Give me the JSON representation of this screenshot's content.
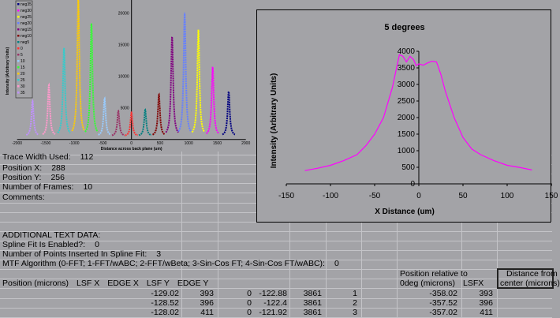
{
  "sheet": {
    "trace_width_label": "Trace Width Used:",
    "trace_width_value": "112",
    "pos_x_label": "Position X:",
    "pos_x_value": "288",
    "pos_y_label": "Position Y:",
    "pos_y_value": "256",
    "frames_label": "Number of Frames:",
    "frames_value": "10",
    "comments_label": "Comments:",
    "additional_label": "ADDITIONAL TEXT DATA:",
    "spline_label": "Spline Fit Is Enabled?:",
    "spline_value": "0",
    "points_label": "Number of Points Inserted In Spline Fit:",
    "points_value": "3",
    "mtf_label": "MTF Algorithm (0-FFT; 1-FFT/wABC; 2-FFT/wBeta; 3-Sin-Cos FT; 4-Sin-Cos FT/wABC):",
    "mtf_value": "0",
    "headers": {
      "position": "Position (microns)",
      "lsfx": "LSF X",
      "edgex": "EDGE X",
      "lsfy": "LSF Y",
      "edgey": "EDGE Y",
      "rel1": "Position relative to",
      "rel2": "0deg (microns)",
      "lsfx2": "LSFX",
      "dist1": "Distance from",
      "dist2": "center (microns)"
    },
    "rows": [
      [
        "-129.02",
        "393",
        "0",
        "-122.88",
        "3861",
        "1",
        "-358.02",
        "393"
      ],
      [
        "-128.52",
        "396",
        "0",
        "-122.4",
        "3861",
        "2",
        "-357.52",
        "396"
      ],
      [
        "-128.02",
        "411",
        "0",
        "-121.92",
        "3861",
        "3",
        "-357.02",
        "411"
      ]
    ]
  },
  "chart_data": [
    {
      "type": "line",
      "title": "",
      "xlabel": "Distance across back plane (um)",
      "ylabel": "Intensity (Arbitrary Units)",
      "xlim": [
        -2000,
        2000
      ],
      "ylim": [
        0,
        22000
      ],
      "xticks": [
        "-2000",
        "-1500",
        "-1000",
        "-500",
        "0",
        "500",
        "1000",
        "1500",
        "2000"
      ],
      "yticks": [
        "5000",
        "10000",
        "15000",
        "20000"
      ],
      "legend_position": "top-left",
      "series": [
        {
          "name": "neg35",
          "center": 1700,
          "peak": 7100,
          "color": "#000080"
        },
        {
          "name": "neg30",
          "center": 1420,
          "peak": 11000,
          "color": "#ff00ff"
        },
        {
          "name": "neg25",
          "center": 1170,
          "peak": 16900,
          "color": "#ffff00"
        },
        {
          "name": "neg20",
          "center": 930,
          "peak": 19600,
          "color": "#6680ff"
        },
        {
          "name": "neg15",
          "center": 710,
          "peak": 15800,
          "color": "#800080"
        },
        {
          "name": "neg10",
          "center": 480,
          "peak": 6600,
          "color": "#800000"
        },
        {
          "name": "neg5",
          "center": 240,
          "peak": 4200,
          "color": "#008080"
        },
        {
          "name": "0",
          "center": 0,
          "peak": 3800,
          "color": "#ff3333"
        },
        {
          "name": "5",
          "center": -230,
          "peak": 4000,
          "color": "#993366"
        },
        {
          "name": "10",
          "center": -470,
          "peak": 6000,
          "color": "#99ccff"
        },
        {
          "name": "15",
          "center": -700,
          "peak": 17900,
          "color": "#33ff33"
        },
        {
          "name": "20",
          "center": -930,
          "peak": 22000,
          "color": "#ffcc00"
        },
        {
          "name": "25",
          "center": -1180,
          "peak": 14000,
          "color": "#33cccc"
        },
        {
          "name": "30",
          "center": -1445,
          "peak": 8100,
          "color": "#ff99cc"
        },
        {
          "name": "35",
          "center": -1730,
          "peak": 5600,
          "color": "#c090ff"
        }
      ]
    },
    {
      "type": "line",
      "title": "5 degrees",
      "xlabel": "X Distance (um)",
      "ylabel": "Intensity (Arbitrary Units)",
      "xlim": [
        -150,
        150
      ],
      "ylim": [
        0,
        4000
      ],
      "xticks": [
        "-150",
        "-100",
        "-50",
        "0",
        "50",
        "100",
        "150"
      ],
      "yticks": [
        "0",
        "500",
        "1000",
        "1500",
        "2000",
        "2500",
        "3000",
        "3500",
        "4000"
      ],
      "color": "#ff00ff",
      "x": [
        -129,
        -115,
        -100,
        -85,
        -70,
        -60,
        -50,
        -40,
        -30,
        -22,
        -18,
        -14,
        -10,
        -6,
        -3,
        0,
        5,
        10,
        15,
        20,
        25,
        30,
        40,
        50,
        60,
        70,
        85,
        100,
        115,
        128
      ],
      "y": [
        400,
        470,
        560,
        700,
        880,
        1150,
        1500,
        2000,
        2900,
        3900,
        3850,
        3680,
        3850,
        3750,
        3570,
        3620,
        3580,
        3650,
        3700,
        3680,
        3300,
        2800,
        2000,
        1400,
        1050,
        880,
        700,
        560,
        490,
        420
      ]
    }
  ]
}
